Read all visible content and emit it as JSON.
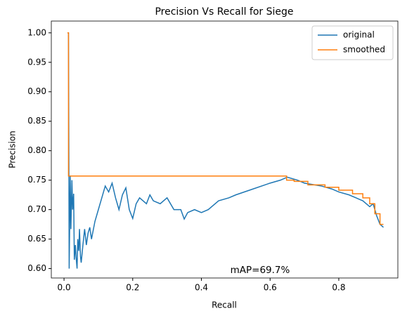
{
  "chart_data": {
    "type": "line",
    "title": "Precision Vs Recall for Siege",
    "x_label": "Recall",
    "y_label": "Precision",
    "annotation": "mAP=69.7%",
    "series": [
      {
        "name": "original",
        "color": "#1f77b4",
        "x": [
          0.01,
          0.013,
          0.015,
          0.018,
          0.02,
          0.023,
          0.025,
          0.028,
          0.03,
          0.033,
          0.035,
          0.038,
          0.04,
          0.043,
          0.045,
          0.048,
          0.05,
          0.055,
          0.06,
          0.065,
          0.07,
          0.075,
          0.08,
          0.09,
          0.1,
          0.11,
          0.12,
          0.13,
          0.14,
          0.15,
          0.16,
          0.17,
          0.18,
          0.19,
          0.2,
          0.21,
          0.22,
          0.24,
          0.25,
          0.26,
          0.28,
          0.3,
          0.32,
          0.34,
          0.35,
          0.36,
          0.38,
          0.4,
          0.42,
          0.45,
          0.48,
          0.5,
          0.55,
          0.6,
          0.63,
          0.65,
          0.68,
          0.7,
          0.73,
          0.75,
          0.78,
          0.8,
          0.83,
          0.85,
          0.87,
          0.89,
          0.9,
          0.91,
          0.92,
          0.93
        ],
        "values": [
          1.0,
          1.0,
          0.6,
          0.757,
          0.667,
          0.75,
          0.7,
          0.727,
          0.615,
          0.64,
          0.62,
          0.6,
          0.65,
          0.63,
          0.667,
          0.62,
          0.61,
          0.64,
          0.667,
          0.64,
          0.66,
          0.67,
          0.65,
          0.68,
          0.7,
          0.72,
          0.74,
          0.73,
          0.745,
          0.72,
          0.7,
          0.725,
          0.737,
          0.7,
          0.685,
          0.71,
          0.72,
          0.71,
          0.725,
          0.715,
          0.71,
          0.72,
          0.7,
          0.7,
          0.684,
          0.695,
          0.7,
          0.695,
          0.7,
          0.715,
          0.72,
          0.725,
          0.735,
          0.745,
          0.75,
          0.755,
          0.75,
          0.745,
          0.742,
          0.74,
          0.735,
          0.73,
          0.725,
          0.72,
          0.715,
          0.705,
          0.71,
          0.69,
          0.675,
          0.67
        ]
      },
      {
        "name": "smoothed",
        "color": "#ff7f0e",
        "x": [
          0.01,
          0.013,
          0.013,
          0.648,
          0.648,
          0.67,
          0.67,
          0.71,
          0.71,
          0.76,
          0.76,
          0.8,
          0.8,
          0.84,
          0.84,
          0.87,
          0.87,
          0.89,
          0.89,
          0.905,
          0.905,
          0.92,
          0.92,
          0.93
        ],
        "values": [
          1.0,
          1.0,
          0.757,
          0.757,
          0.75,
          0.75,
          0.748,
          0.748,
          0.742,
          0.742,
          0.738,
          0.738,
          0.733,
          0.733,
          0.727,
          0.727,
          0.72,
          0.72,
          0.71,
          0.71,
          0.693,
          0.693,
          0.675,
          0.675
        ]
      }
    ],
    "xlim": [
      -0.037,
      0.972
    ],
    "ylim": [
      0.584,
      1.02
    ],
    "xticks": [
      {
        "value": 0,
        "label": "0.0"
      },
      0.2,
      0.4,
      0.6,
      0.8
    ],
    "yticks": [
      {
        "value": 0.6,
        "label": "0.60"
      },
      0.65,
      {
        "value": 0.7,
        "label": "0.70"
      },
      0.75,
      {
        "value": 0.8,
        "label": "0.80"
      },
      0.85,
      {
        "value": 0.9,
        "label": "0.90"
      },
      0.95,
      {
        "value": 1.0,
        "label": "1.00"
      }
    ],
    "legend": "upper right"
  }
}
